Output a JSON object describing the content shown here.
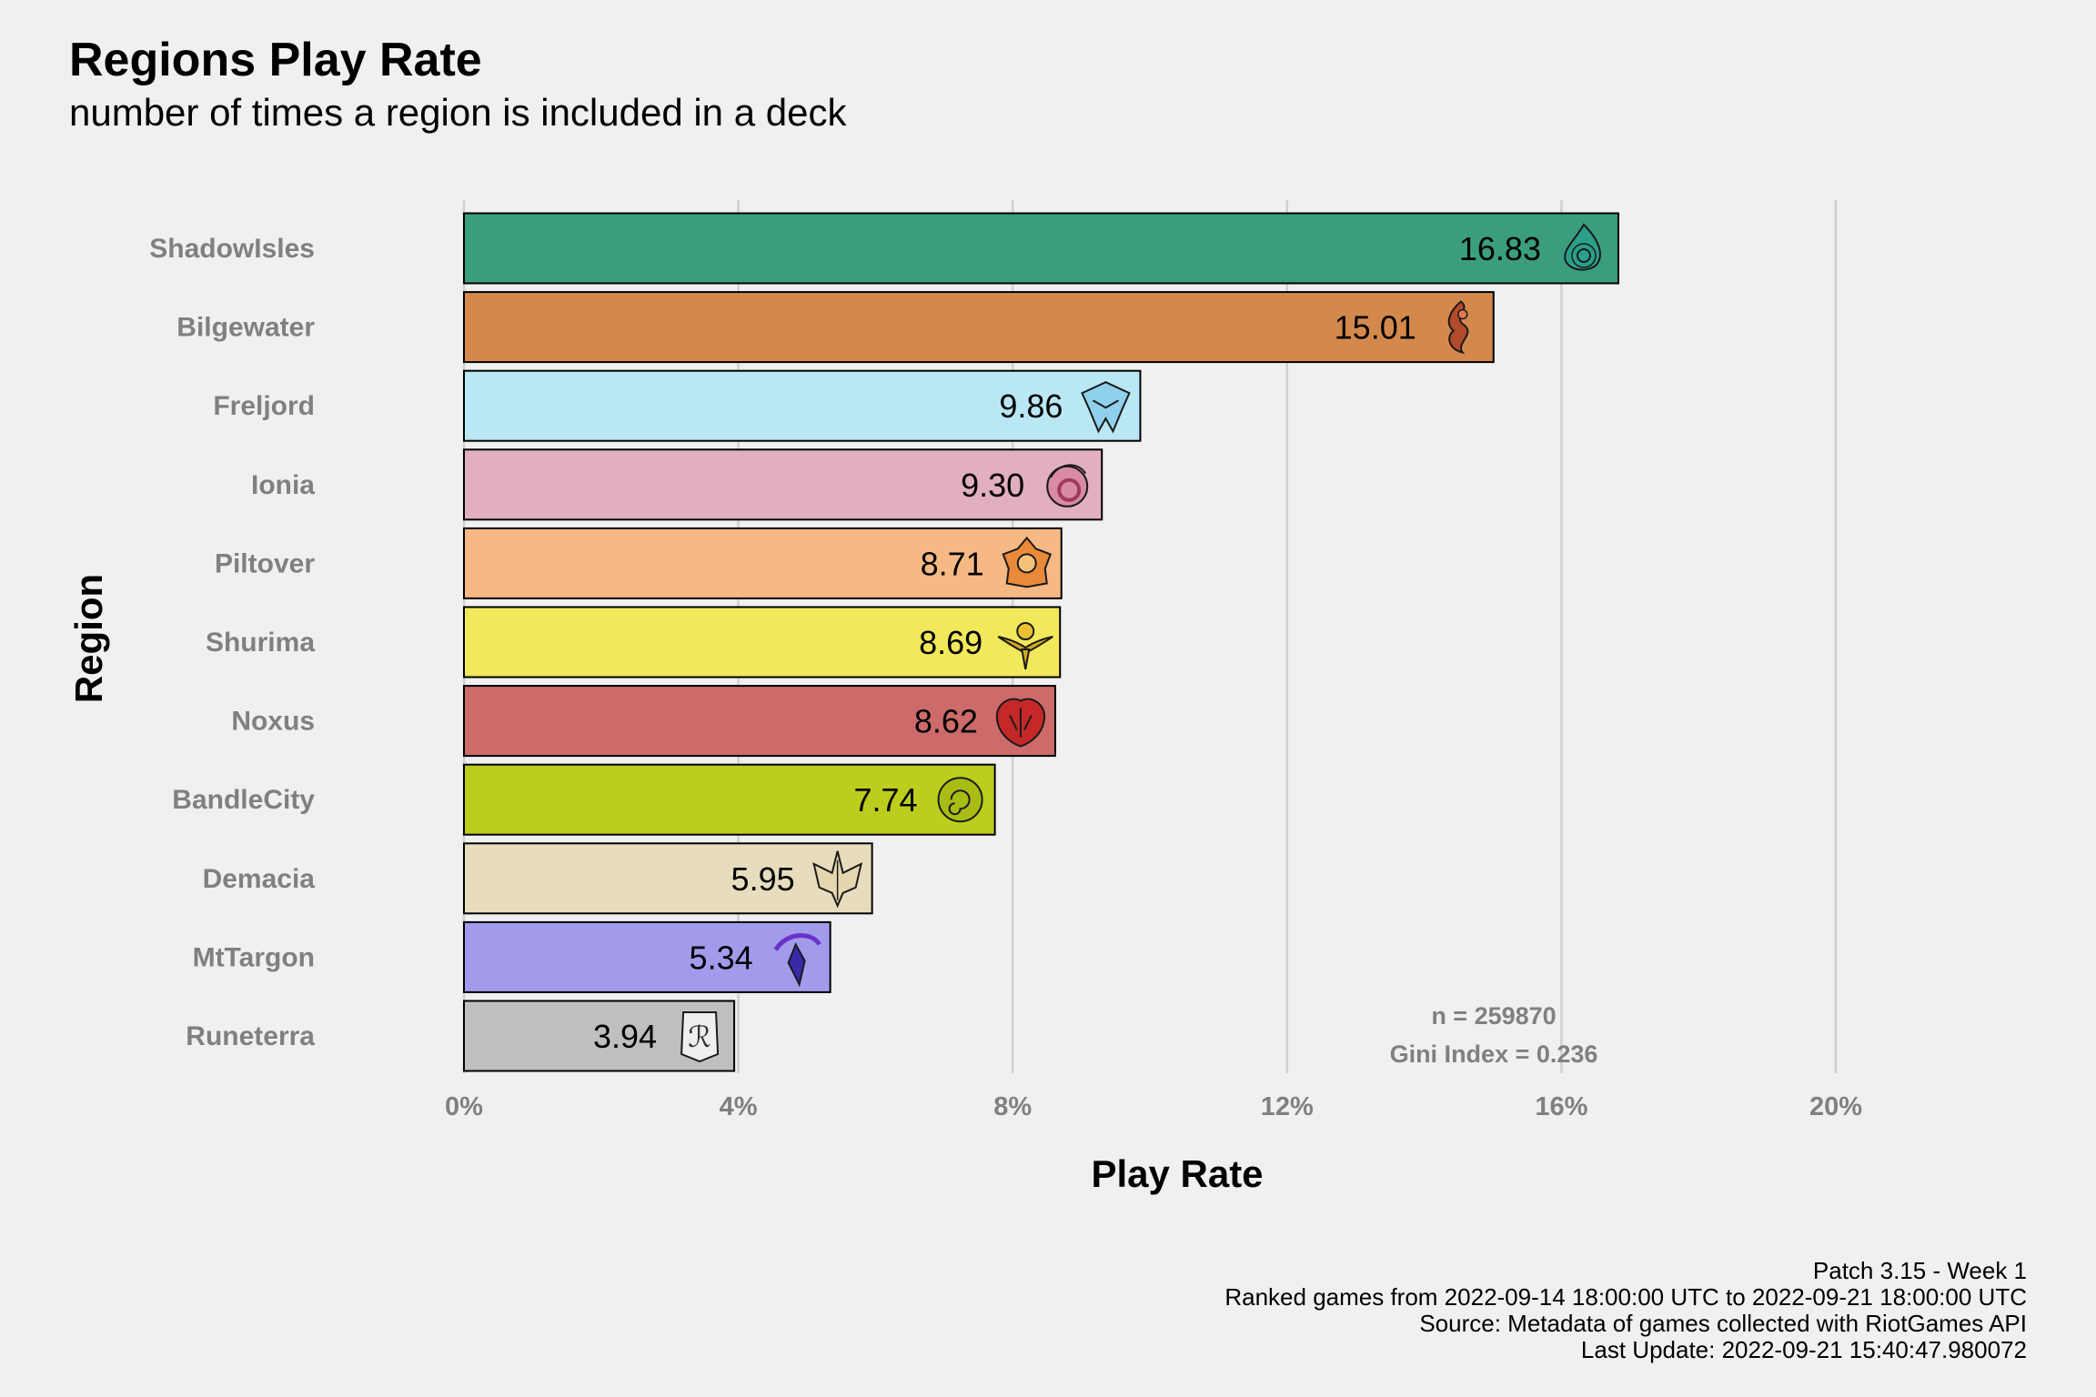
{
  "chart_data": {
    "type": "bar",
    "orientation": "horizontal",
    "title": "Regions Play Rate",
    "subtitle": "number of times a region is included in a deck",
    "xlabel": "Play Rate",
    "ylabel": "Region",
    "xlim": [
      0,
      20
    ],
    "x_ticks": [
      "0%",
      "4%",
      "8%",
      "12%",
      "16%",
      "20%"
    ],
    "grid": "vertical major gridlines",
    "categories": [
      "ShadowIsles",
      "Bilgewater",
      "Freljord",
      "Ionia",
      "Piltover",
      "Shurima",
      "Noxus",
      "BandleCity",
      "Demacia",
      "MtTargon",
      "Runeterra"
    ],
    "values": [
      16.83,
      15.01,
      9.86,
      9.3,
      8.71,
      8.69,
      8.62,
      7.74,
      5.95,
      5.34,
      3.94
    ],
    "value_labels": [
      "16.83",
      "15.01",
      "9.86",
      "9.30",
      "8.71",
      "8.69",
      "8.62",
      "7.74",
      "5.95",
      "5.34",
      "3.94"
    ],
    "bar_colors": [
      "#3a9d7e",
      "#d4894c",
      "#b9e8f4",
      "#e1afc0",
      "#f6b985",
      "#f2e85c",
      "#cd6b6b",
      "#bcce1d",
      "#e7ddbe",
      "#a29bec",
      "#bfbfbf"
    ],
    "icons": [
      "shadow-isles-icon",
      "bilgewater-icon",
      "freljord-icon",
      "ionia-icon",
      "piltover-icon",
      "shurima-icon",
      "noxus-icon",
      "bandle-city-icon",
      "demacia-icon",
      "mt-targon-icon",
      "runeterra-icon"
    ],
    "annotations": [
      "n = 259870",
      "Gini Index = 0.236"
    ]
  },
  "caption": [
    "Patch 3.15 - Week 1",
    "Ranked games from 2022-09-14 18:00:00 UTC to 2022-09-21 18:00:00 UTC",
    "Source: Metadata of games collected with RiotGames API",
    "Last Update: 2022-09-21 15:40:47.980072"
  ]
}
